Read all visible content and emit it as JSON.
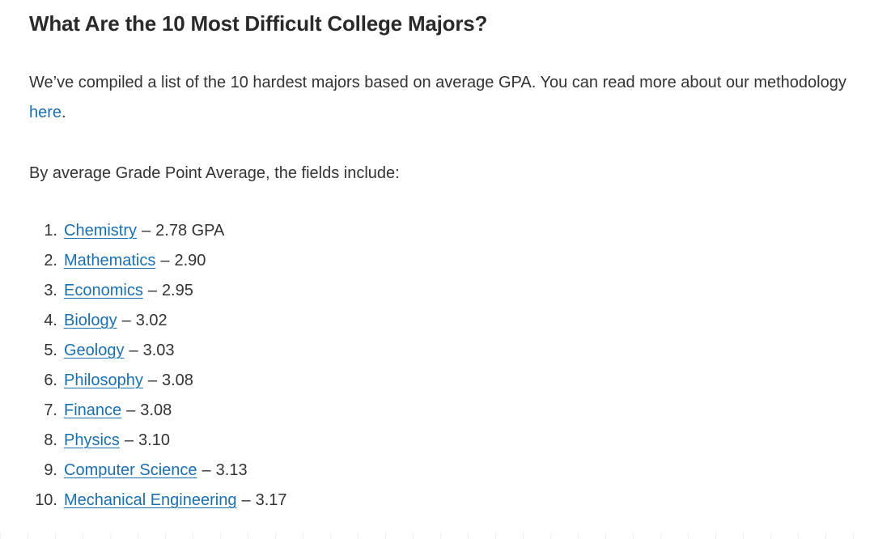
{
  "heading": "What Are the 10 Most Difficult College Majors?",
  "intro": {
    "text_before_link": "We’ve compiled a list of the 10 hardest majors based on average GPA. You can read more about our methodology ",
    "link_text": "here",
    "text_after_link": "."
  },
  "lead": "By average Grade Point Average, the fields include:",
  "list": {
    "separator": "–",
    "items": [
      {
        "number": "1.",
        "major": "Chemistry",
        "value": "2.78 GPA"
      },
      {
        "number": "2.",
        "major": "Mathematics",
        "value": "2.90"
      },
      {
        "number": "3.",
        "major": "Economics",
        "value": "2.95"
      },
      {
        "number": "4.",
        "major": "Biology",
        "value": "3.02"
      },
      {
        "number": "5.",
        "major": "Geology",
        "value": "3.03"
      },
      {
        "number": "6.",
        "major": "Philosophy",
        "value": "3.08"
      },
      {
        "number": "7.",
        "major": "Finance",
        "value": "3.08"
      },
      {
        "number": "8.",
        "major": "Physics",
        "value": "3.10"
      },
      {
        "number": "9.",
        "major": "Computer Science",
        "value": "3.13"
      },
      {
        "number": "10.",
        "major": "Mechanical Engineering",
        "value": "3.17"
      }
    ]
  },
  "colors": {
    "link": "#1a6fb0",
    "text": "#333333",
    "heading": "#2a2a2a"
  }
}
